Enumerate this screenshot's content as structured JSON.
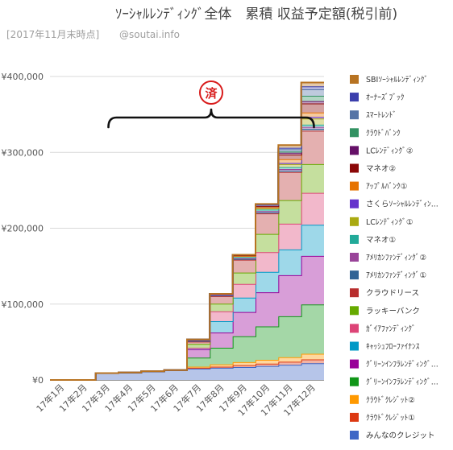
{
  "chart_data": {
    "type": "area",
    "stacked": true,
    "step": true,
    "title": "ｿｰｼｬﾙﾚﾝﾃﾞｨﾝｸﾞ全体　累積 収益予定額(税引前)",
    "subtitle_period": "[2017年11月末時点]",
    "subtitle_site": "@soutai.info",
    "xlabel": "",
    "ylabel": "",
    "ylim": [
      0,
      400000
    ],
    "yticks": [
      0,
      100000,
      200000,
      300000,
      400000
    ],
    "ytick_labels": [
      "¥0",
      "¥100,000",
      "¥200,000",
      "¥300,000",
      "¥400,000"
    ],
    "grid": true,
    "legend_position": "right",
    "annotation": {
      "text": "済",
      "brace_from": "17年2月",
      "brace_to": "17年11月"
    },
    "categories": [
      "17年1月",
      "17年2月",
      "17年3月",
      "17年4月",
      "17年5月",
      "17年6月",
      "17年7月",
      "17年8月",
      "17年9月",
      "17年10月",
      "17年11月",
      "17年12月"
    ],
    "series": [
      {
        "name": "みんなのクレジット",
        "color": "#3f67c6",
        "values": [
          0,
          0,
          9000,
          10000,
          11500,
          13000,
          15000,
          16000,
          17000,
          18500,
          20000,
          22000
        ]
      },
      {
        "name": "ｸﾗｳﾄﾞｸﾚｼﾞｯﾄ①",
        "color": "#dc3912",
        "values": [
          0,
          0,
          0,
          0,
          0,
          0,
          1000,
          1500,
          2500,
          3000,
          4000,
          5000
        ]
      },
      {
        "name": "ｸﾗｳﾄﾞｸﾚｼﾞｯﾄ②",
        "color": "#ff9900",
        "values": [
          0,
          0,
          0,
          0,
          0,
          0,
          1500,
          3000,
          4000,
          5000,
          6000,
          7500
        ]
      },
      {
        "name": "ｸﾞﾘｰﾝｲﾝﾌﾗﾚﾝﾃﾞｨﾝｸﾞ...",
        "color": "#109618",
        "values": [
          0,
          0,
          0,
          0,
          0,
          0,
          12000,
          22000,
          34000,
          44000,
          54000,
          65000
        ]
      },
      {
        "name": "ｸﾞﾘｰﾝｲﾝﾌﾗﾚﾝﾃﾞｨﾝｸﾞ...",
        "color": "#990099",
        "values": [
          0,
          0,
          0,
          0,
          0,
          0,
          11000,
          20000,
          32000,
          45000,
          54000,
          64000
        ]
      },
      {
        "name": "ｷｬｯｼｭﾌﾛｰﾌｧｲﾅﾝｽ",
        "color": "#0099c6",
        "values": [
          0,
          0,
          0,
          0,
          0,
          0,
          2000,
          15000,
          19000,
          27000,
          34000,
          41000
        ]
      },
      {
        "name": "ｶﾞｲｱﾌｧﾝﾃﾞｨﾝｸﾞ",
        "color": "#dd4477",
        "values": [
          0,
          0,
          0,
          0,
          0,
          0,
          0,
          13000,
          18000,
          26000,
          34000,
          42000
        ]
      },
      {
        "name": "ラッキーバンク",
        "color": "#66aa00",
        "values": [
          0,
          0,
          0,
          0,
          0,
          0,
          5000,
          10000,
          15000,
          24000,
          31000,
          38000
        ]
      },
      {
        "name": "クラウドリース",
        "color": "#b82e2e",
        "values": [
          0,
          0,
          0,
          0,
          0,
          0,
          3000,
          10000,
          17000,
          27000,
          37000,
          44000
        ]
      },
      {
        "name": "ｱﾒﾘｶﾝﾌｧﾝﾃﾞｨﾝｸﾞ①",
        "color": "#316395",
        "values": [
          0,
          0,
          0,
          0,
          0,
          0,
          1000,
          1000,
          1000,
          1500,
          2000,
          2500
        ]
      },
      {
        "name": "ｱﾒﾘｶﾝﾌｧﾝﾃﾞｨﾝｸﾞ②",
        "color": "#994499",
        "values": [
          0,
          0,
          0,
          0,
          0,
          0,
          1000,
          1000,
          1000,
          1500,
          2000,
          2500
        ]
      },
      {
        "name": "マネオ①",
        "color": "#22aa99",
        "values": [
          0,
          0,
          0,
          0,
          0,
          0,
          1000,
          1000,
          1500,
          2000,
          2500,
          3000
        ]
      },
      {
        "name": "LCﾚﾝﾃﾞｨﾝｸﾞ①",
        "color": "#aaaa11",
        "values": [
          0,
          0,
          0,
          0,
          0,
          0,
          0,
          0,
          1500,
          2000,
          4000,
          8000
        ]
      },
      {
        "name": "さくらｿｰｼｬﾙﾚﾝﾃﾞｨﾝ...",
        "color": "#6633cc",
        "values": [
          0,
          0,
          0,
          0,
          0,
          0,
          0,
          0,
          0,
          1000,
          1500,
          2000
        ]
      },
      {
        "name": "ｱｯﾌﾟﾙﾊﾞﾝｸ①",
        "color": "#e67300",
        "values": [
          0,
          0,
          0,
          0,
          0,
          0,
          0,
          0,
          0,
          0,
          5000,
          6000
        ]
      },
      {
        "name": "マネオ②",
        "color": "#8b0707",
        "values": [
          0,
          0,
          0,
          0,
          0,
          0,
          0,
          0,
          1000,
          1500,
          6000,
          12000
        ]
      },
      {
        "name": "LCﾚﾝﾃﾞｨﾝｸﾞ②",
        "color": "#651067",
        "values": [
          0,
          0,
          0,
          0,
          0,
          0,
          0,
          0,
          500,
          2000,
          2500,
          3000
        ]
      },
      {
        "name": "ｸﾗｳﾄﾞﾊﾞﾝｸ",
        "color": "#329262",
        "values": [
          0,
          0,
          0,
          0,
          0,
          0,
          0,
          0,
          0,
          0,
          1500,
          7000
        ]
      },
      {
        "name": "ｽﾏｰﾄﾚﾝﾄﾞ",
        "color": "#5574a6",
        "values": [
          0,
          0,
          0,
          0,
          0,
          0,
          0,
          0,
          0,
          0,
          3000,
          8500
        ]
      },
      {
        "name": "ｵｰﾅｰｽﾞﾌﾞｯｸ",
        "color": "#3b3eac",
        "values": [
          0,
          0,
          0,
          0,
          0,
          0,
          0,
          0,
          0,
          0,
          2000,
          4000
        ]
      },
      {
        "name": "SBIｿｰｼｬﾙﾚﾝﾃﾞｨﾝｸﾞ",
        "color": "#b77322",
        "values": [
          0,
          0,
          0,
          0,
          0,
          0,
          0,
          0,
          0,
          1000,
          3500,
          5000
        ]
      }
    ]
  }
}
